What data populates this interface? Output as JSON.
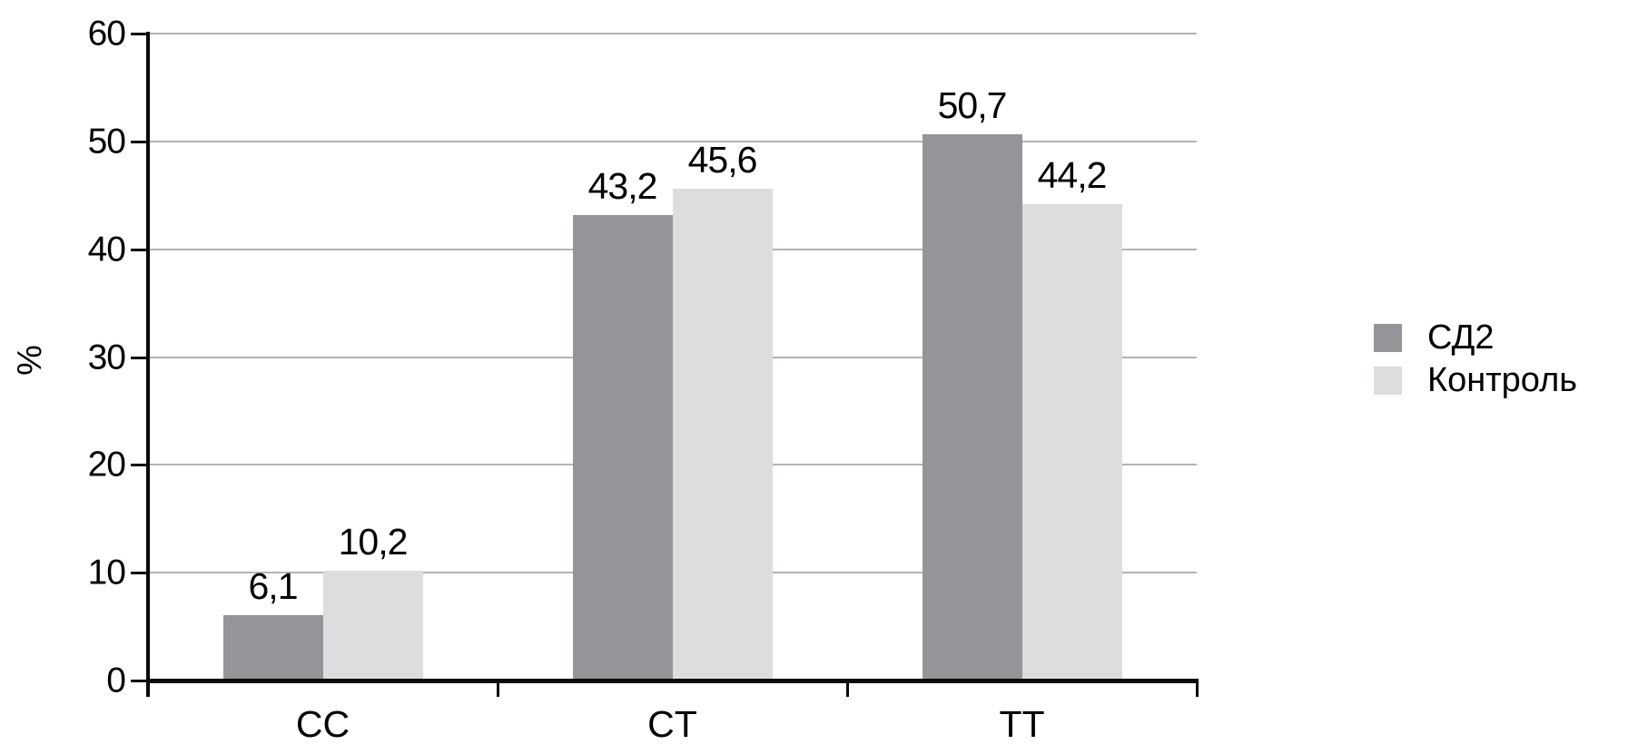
{
  "chart_data": {
    "type": "bar",
    "title": "",
    "xlabel": "",
    "ylabel": "%",
    "categories": [
      "CC",
      "CT",
      "TT"
    ],
    "series": [
      {
        "name": "СД2",
        "color": "#939598",
        "values": [
          6.1,
          43.2,
          50.7
        ],
        "labels": [
          "6,1",
          "43,2",
          "50,7"
        ]
      },
      {
        "name": "Контроль",
        "color": "#dcddde",
        "values": [
          10.2,
          45.6,
          44.2
        ],
        "labels": [
          "10,2",
          "45,6",
          "44,2"
        ]
      }
    ],
    "ylim": [
      0,
      60
    ],
    "yticks": [
      0,
      10,
      20,
      30,
      40,
      50,
      60
    ],
    "ytick_labels": [
      "0",
      "10",
      "20",
      "30",
      "40",
      "50",
      "60"
    ],
    "grid": true,
    "gridline_color": "#b3b3b5",
    "axis_color": "#0a0a0a",
    "legend_position": "right",
    "decimal_separator": ","
  }
}
